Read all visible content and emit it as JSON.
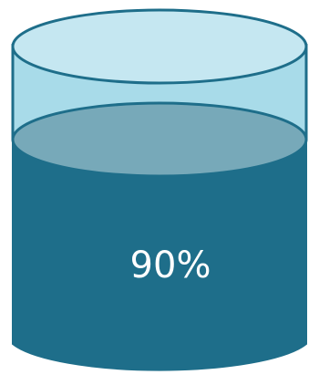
{
  "gauge": {
    "level": 0.9,
    "label": "90%"
  },
  "colors": {
    "liquid": "#1e6e8a",
    "liquid_top": "#77a9b9",
    "glass_body": "#a8dbe9",
    "glass_top": "#c5e7f1",
    "outline": "#1e6e8a"
  }
}
